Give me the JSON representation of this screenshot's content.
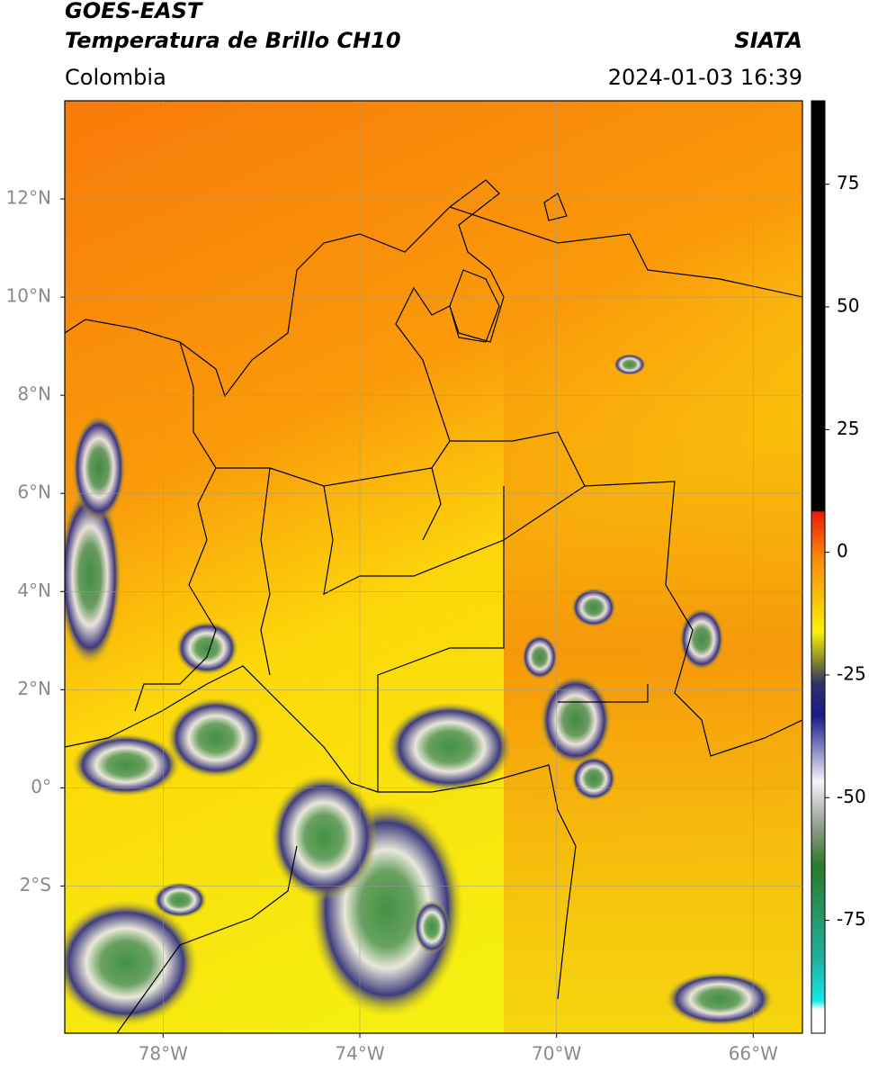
{
  "header": {
    "title": "GOES-EAST",
    "subtitle": "Temperatura de Brillo CH10",
    "source": "SIATA",
    "region": "Colombia",
    "timestamp": "2024-01-03 16:39"
  },
  "map": {
    "xlim": [
      -80,
      -65
    ],
    "ylim": [
      -5,
      14
    ],
    "xticks": [
      {
        "value": -78,
        "label": "78°W"
      },
      {
        "value": -74,
        "label": "74°W"
      },
      {
        "value": -70,
        "label": "70°W"
      },
      {
        "value": -66,
        "label": "66°W"
      }
    ],
    "yticks": [
      {
        "value": 12,
        "label": "12°N"
      },
      {
        "value": 10,
        "label": "10°N"
      },
      {
        "value": 8,
        "label": "8°N"
      },
      {
        "value": 6,
        "label": "6°N"
      },
      {
        "value": 4,
        "label": "4°N"
      },
      {
        "value": 2,
        "label": "2°N"
      },
      {
        "value": 0,
        "label": "0°"
      },
      {
        "value": -2,
        "label": "2°S"
      }
    ],
    "grid": true
  },
  "colorbar": {
    "lim": [
      -98,
      92
    ],
    "ticks": [
      75,
      50,
      25,
      0,
      -25,
      -50,
      -75
    ]
  }
}
